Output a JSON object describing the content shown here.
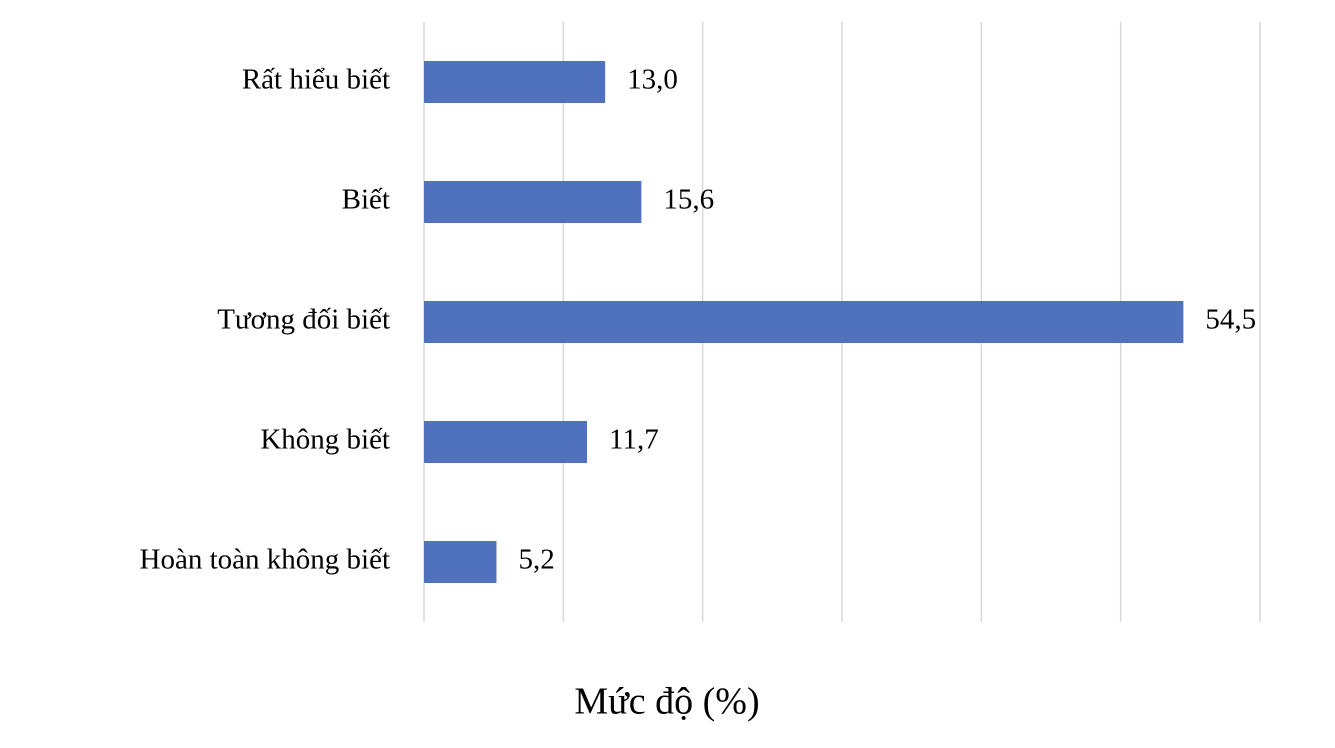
{
  "chart_data": {
    "type": "barh",
    "x_label": "Mức độ (%)",
    "categories": [
      "Rất hiểu biết",
      "Biết",
      "Tương đối biết",
      "Không biết",
      "Hoàn toàn không biết"
    ],
    "values": [
      13.0,
      15.6,
      54.5,
      11.7,
      5.2
    ],
    "value_labels": [
      "13,0",
      "15,6",
      "54,5",
      "11,7",
      "5,2"
    ],
    "color": "#4f71be",
    "xlim": [
      0,
      60
    ],
    "xticks": [
      0,
      10,
      20,
      30,
      40,
      50,
      60
    ],
    "grid": true
  }
}
